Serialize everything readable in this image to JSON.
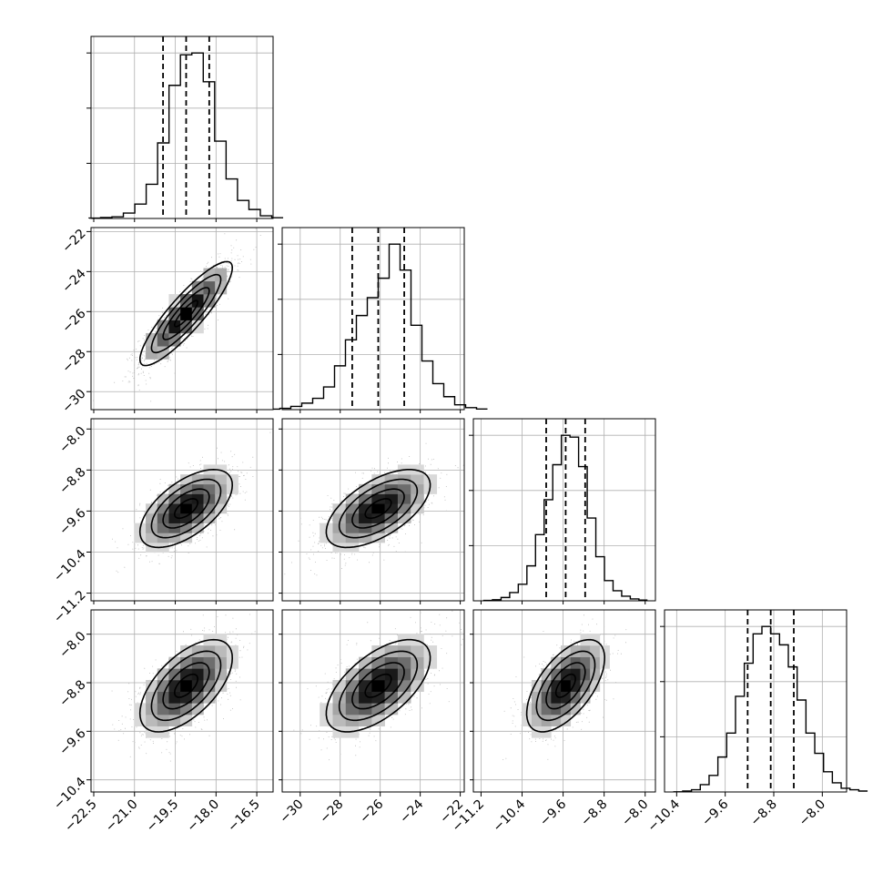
{
  "chart_data": {
    "type": "corner",
    "grid": true,
    "params": [
      {
        "mean": -19.1,
        "sd": 0.85,
        "q16": -19.95,
        "q50": -19.1,
        "q84": -18.25,
        "range": [
          -22.6,
          -15.9
        ],
        "ticks": [
          "-22.5",
          "-21.0",
          "-19.5",
          "-18.0",
          "-16.5"
        ],
        "tick_values": [
          -22.5,
          -21.0,
          -19.5,
          -18.0,
          -16.5
        ]
      },
      {
        "mean": -26.1,
        "sd": 1.3,
        "q16": -27.4,
        "q50": -26.1,
        "q84": -24.8,
        "range": [
          -30.9,
          -21.8
        ],
        "ticks": [
          "-30",
          "-28",
          "-26",
          "-24",
          "-22"
        ],
        "tick_values": [
          -30,
          -28,
          -26,
          -24,
          -22
        ]
      },
      {
        "mean": -9.55,
        "sd": 0.38,
        "q16": -9.93,
        "q50": -9.55,
        "q84": -9.17,
        "range": [
          -11.35,
          -7.8
        ],
        "ticks": [
          "-11.2",
          "-10.4",
          "-9.6",
          "-8.8",
          "-8.0"
        ],
        "tick_values": [
          -11.2,
          -10.4,
          -9.6,
          -8.8,
          -8.0
        ]
      },
      {
        "mean": -8.85,
        "sd": 0.38,
        "q16": -9.23,
        "q50": -8.85,
        "q84": -8.47,
        "range": [
          -10.6,
          -7.6
        ],
        "ticks": [
          "-10.4",
          "-9.6",
          "-8.8",
          "-8.0"
        ],
        "tick_values": [
          -10.4,
          -9.6,
          -8.8,
          -8.0
        ]
      }
    ],
    "histograms": [
      [
        2,
        5,
        9,
        30,
        80,
        190,
        420,
        740,
        910,
        920,
        760,
        430,
        220,
        100,
        50,
        15,
        4
      ],
      [
        3,
        8,
        20,
        40,
        70,
        140,
        270,
        430,
        580,
        690,
        810,
        1020,
        860,
        520,
        300,
        160,
        80,
        30,
        12,
        4
      ],
      [
        2,
        6,
        18,
        45,
        90,
        190,
        360,
        550,
        740,
        900,
        890,
        730,
        450,
        240,
        110,
        55,
        25,
        10,
        4
      ],
      [
        1,
        5,
        12,
        40,
        90,
        190,
        320,
        520,
        700,
        860,
        900,
        860,
        800,
        680,
        500,
        320,
        210,
        110,
        50,
        20,
        12,
        5
      ]
    ],
    "correlations": {
      "1-0": 0.88,
      "2-0": 0.6,
      "3-0": 0.6,
      "2-1": 0.6,
      "3-1": 0.6,
      "3-2": 0.6
    }
  }
}
